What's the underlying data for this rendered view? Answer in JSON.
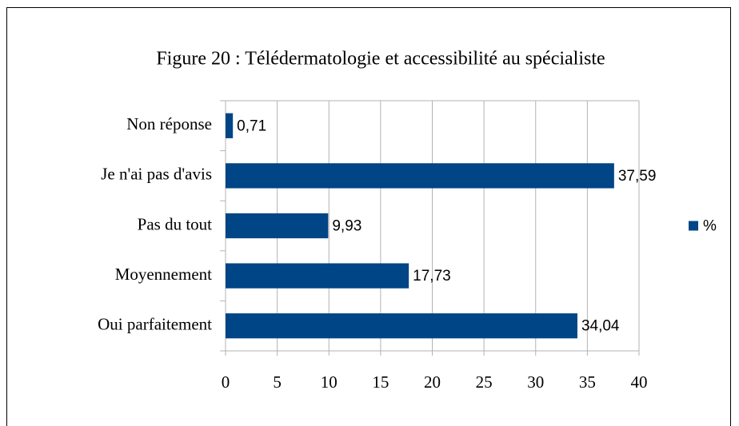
{
  "chart_data": {
    "type": "barh",
    "title": "Figure 20 : Télédermatologie et accessibilité au spécialiste",
    "categories": [
      "Non réponse",
      "Je n'ai pas d'avis",
      "Pas du tout",
      "Moyennement",
      "Oui parfaitement"
    ],
    "series": [
      {
        "name": "%",
        "color": "#004586",
        "values": [
          0.71,
          37.59,
          9.93,
          17.73,
          34.04
        ],
        "value_labels": [
          "0,71",
          "37,59",
          "9,93",
          "17,73",
          "34,04"
        ]
      }
    ],
    "xlim": [
      0,
      40
    ],
    "xticks": [
      0,
      5,
      10,
      15,
      20,
      25,
      30,
      35,
      40
    ],
    "grid": true,
    "legend": "right"
  }
}
